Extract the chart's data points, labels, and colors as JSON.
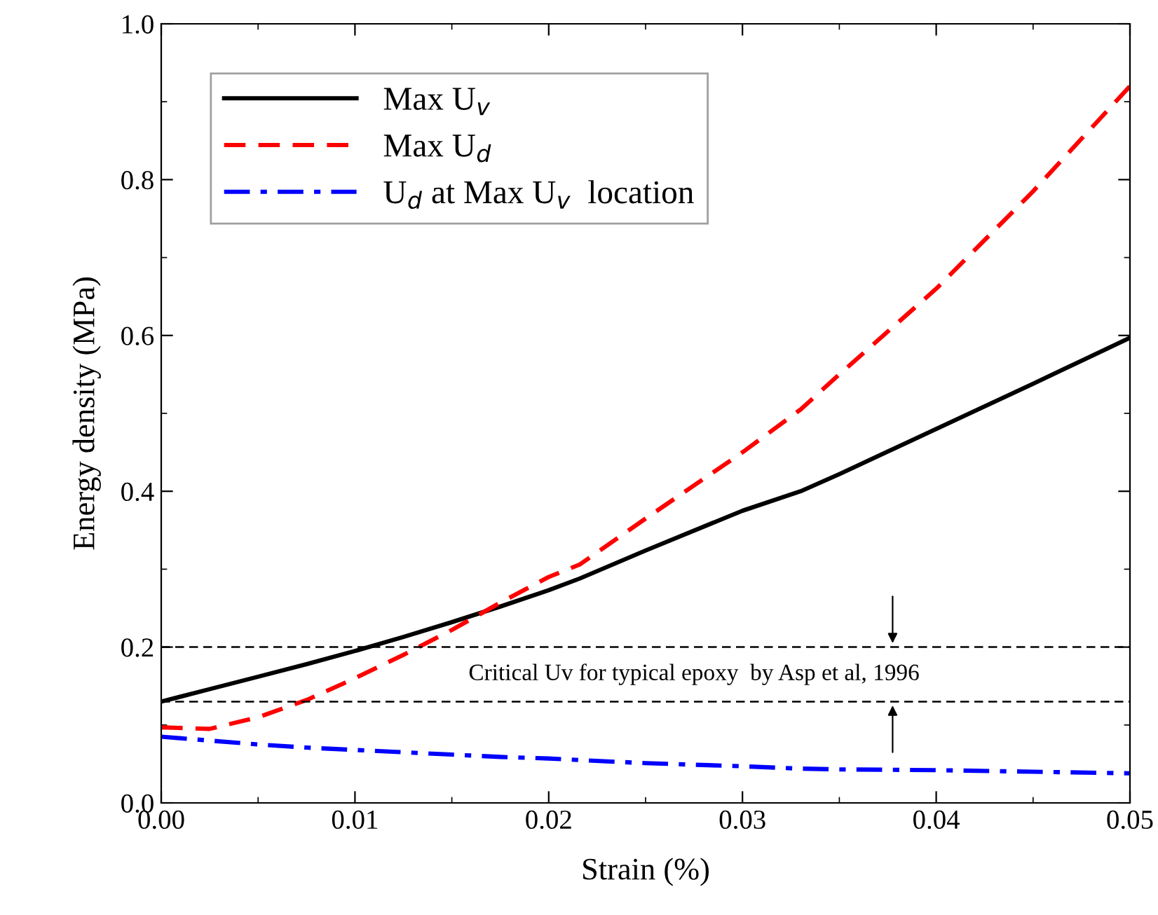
{
  "chart_data": {
    "type": "line",
    "xlabel": "Strain (%)",
    "ylabel": "Energy density (MPa)",
    "x": [
      0,
      0.0025,
      0.005,
      0.0075,
      0.01,
      0.0125,
      0.015,
      0.0175,
      0.02,
      0.0216,
      0.025,
      0.03,
      0.033,
      0.035,
      0.04,
      0.045,
      0.05
    ],
    "series": [
      {
        "name": "Max U$_{v}$",
        "color": "#000000",
        "line_style": "solid",
        "values": [
          0.13,
          0.146,
          0.162,
          0.178,
          0.195,
          0.213,
          0.232,
          0.252,
          0.273,
          0.288,
          0.324,
          0.375,
          0.4,
          0.422,
          0.48,
          0.538,
          0.597
        ]
      },
      {
        "name": "Max U$_{d}$",
        "color": "#ff0000",
        "line_style": "dashed",
        "values": [
          0.097,
          0.095,
          0.11,
          0.132,
          0.16,
          0.19,
          0.222,
          0.257,
          0.29,
          0.306,
          0.365,
          0.45,
          0.505,
          0.55,
          0.66,
          0.785,
          0.92
        ]
      },
      {
        "name": "U$_{d}$ at Max U$_{v}$  location",
        "color": "#0000ff",
        "line_style": "dashdot",
        "values": [
          0.085,
          0.08,
          0.075,
          0.071,
          0.068,
          0.065,
          0.062,
          0.059,
          0.057,
          0.055,
          0.051,
          0.047,
          0.044,
          0.043,
          0.042,
          0.04,
          0.038
        ]
      }
    ],
    "xlim": [
      0,
      0.05
    ],
    "ylim": [
      0,
      1.0
    ],
    "xticks": [
      {
        "value": 0,
        "label": "0.00"
      },
      0.01,
      0.02,
      0.03,
      0.04,
      0.05
    ],
    "yticks": [
      {
        "value": 0,
        "label": "0.0"
      },
      0.2,
      0.4,
      0.6,
      0.8,
      {
        "value": 1.0,
        "label": "1.0"
      }
    ],
    "ref_lines": [
      {
        "axis": "y",
        "value": 0.2,
        "color": "#000000",
        "line_style": "dashed"
      },
      {
        "axis": "y",
        "value": 0.13,
        "color": "#000000",
        "line_style": "dashed"
      }
    ],
    "annotations": [
      "Critical Uv for typical epoxy  by Asp et al, 1996"
    ],
    "legend": "top left",
    "grid": false
  }
}
